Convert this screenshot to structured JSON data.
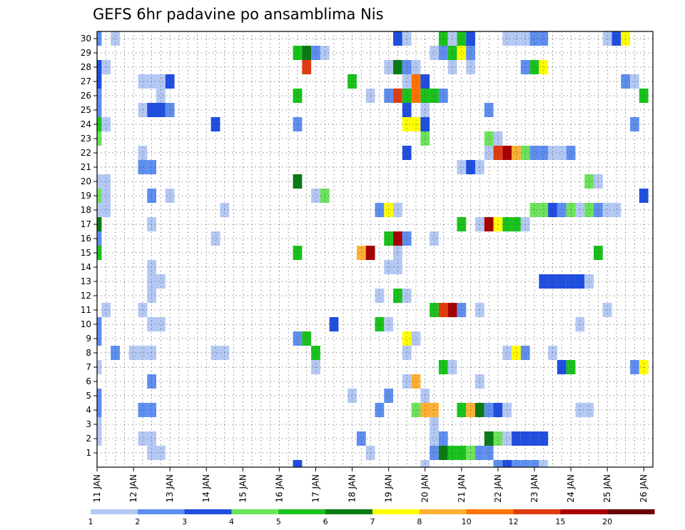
{
  "chart_data": {
    "type": "heatmap",
    "title": "GEFS 6hr padavine po ansamblima Nis",
    "xlabel": "",
    "ylabel": "",
    "x_tick_labels": [
      "11 JAN",
      "12 JAN",
      "13 JAN",
      "14 JAN",
      "15 JAN",
      "16 JAN",
      "17 JAN",
      "18 JAN",
      "19 JAN",
      "20 JAN",
      "21 JAN",
      "22 JAN",
      "23 JAN",
      "24 JAN",
      "25 JAN",
      "26 JAN"
    ],
    "y_tick_labels": [
      "1",
      "2",
      "3",
      "4",
      "5",
      "6",
      "7",
      "8",
      "9",
      "10",
      "11",
      "12",
      "13",
      "14",
      "15",
      "16",
      "17",
      "18",
      "19",
      "20",
      "21",
      "22",
      "23",
      "24",
      "25",
      "26",
      "27",
      "28",
      "29",
      "30"
    ],
    "ylim": [
      0,
      30
    ],
    "time_steps": 61,
    "grid": true,
    "levels": [
      {
        "label": "1",
        "color": "#b4c8f4"
      },
      {
        "label": "2",
        "color": "#5e8eef"
      },
      {
        "label": "3",
        "color": "#1f4ee0"
      },
      {
        "label": "4",
        "color": "#6ce35a"
      },
      {
        "label": "5",
        "color": "#19c21c"
      },
      {
        "label": "6",
        "color": "#0a7a14"
      },
      {
        "label": "7",
        "color": "#ffff00"
      },
      {
        "label": "8",
        "color": "#ffb033"
      },
      {
        "label": "10",
        "color": "#ff7400"
      },
      {
        "label": "12",
        "color": "#e03c10"
      },
      {
        "label": "15",
        "color": "#a80000"
      },
      {
        "label": "20",
        "color": "#6a0000"
      }
    ],
    "colorbar_labels": [
      "1",
      "2",
      "3",
      "4",
      "5",
      "6",
      "7",
      "8",
      "10",
      "12",
      "15",
      "20"
    ],
    "cells_format": "[member, time_step, level_index]",
    "cells": [
      [
        30,
        0,
        1
      ],
      [
        30,
        2,
        0
      ],
      [
        30,
        33,
        2
      ],
      [
        30,
        34,
        0
      ],
      [
        30,
        38,
        4
      ],
      [
        30,
        39,
        0
      ],
      [
        30,
        40,
        4
      ],
      [
        30,
        41,
        2
      ],
      [
        30,
        45,
        0
      ],
      [
        30,
        46,
        0
      ],
      [
        30,
        47,
        0
      ],
      [
        30,
        48,
        1
      ],
      [
        30,
        49,
        1
      ],
      [
        30,
        56,
        0
      ],
      [
        30,
        57,
        2
      ],
      [
        30,
        58,
        6
      ],
      [
        29,
        22,
        4
      ],
      [
        29,
        23,
        5
      ],
      [
        29,
        24,
        1
      ],
      [
        29,
        25,
        0
      ],
      [
        29,
        37,
        0
      ],
      [
        29,
        38,
        1
      ],
      [
        29,
        39,
        4
      ],
      [
        29,
        40,
        6
      ],
      [
        29,
        41,
        1
      ],
      [
        28,
        0,
        2
      ],
      [
        28,
        1,
        0
      ],
      [
        28,
        23,
        9
      ],
      [
        28,
        32,
        0
      ],
      [
        28,
        33,
        5
      ],
      [
        28,
        34,
        1
      ],
      [
        28,
        35,
        0
      ],
      [
        28,
        39,
        0
      ],
      [
        28,
        41,
        0
      ],
      [
        28,
        47,
        1
      ],
      [
        28,
        48,
        4
      ],
      [
        28,
        49,
        6
      ],
      [
        27,
        0,
        2
      ],
      [
        27,
        5,
        0
      ],
      [
        27,
        6,
        0
      ],
      [
        27,
        7,
        0
      ],
      [
        27,
        8,
        2
      ],
      [
        27,
        28,
        4
      ],
      [
        27,
        34,
        0
      ],
      [
        27,
        35,
        8
      ],
      [
        27,
        36,
        2
      ],
      [
        27,
        58,
        1
      ],
      [
        27,
        59,
        0
      ],
      [
        26,
        0,
        1
      ],
      [
        26,
        7,
        0
      ],
      [
        26,
        22,
        4
      ],
      [
        26,
        30,
        0
      ],
      [
        26,
        32,
        1
      ],
      [
        26,
        33,
        9
      ],
      [
        26,
        34,
        4
      ],
      [
        26,
        35,
        8
      ],
      [
        26,
        36,
        4
      ],
      [
        26,
        37,
        4
      ],
      [
        26,
        38,
        1
      ],
      [
        26,
        60,
        4
      ],
      [
        25,
        0,
        1
      ],
      [
        25,
        5,
        0
      ],
      [
        25,
        6,
        2
      ],
      [
        25,
        7,
        2
      ],
      [
        25,
        8,
        1
      ],
      [
        25,
        34,
        2
      ],
      [
        25,
        36,
        0
      ],
      [
        25,
        43,
        1
      ],
      [
        24,
        0,
        4
      ],
      [
        24,
        1,
        0
      ],
      [
        24,
        13,
        2
      ],
      [
        24,
        22,
        1
      ],
      [
        24,
        34,
        6
      ],
      [
        24,
        35,
        6
      ],
      [
        24,
        36,
        2
      ],
      [
        24,
        59,
        1
      ],
      [
        23,
        0,
        3
      ],
      [
        23,
        36,
        3
      ],
      [
        23,
        43,
        3
      ],
      [
        23,
        44,
        0
      ],
      [
        22,
        5,
        0
      ],
      [
        22,
        34,
        2
      ],
      [
        22,
        43,
        0
      ],
      [
        22,
        44,
        9
      ],
      [
        22,
        45,
        10
      ],
      [
        22,
        46,
        7
      ],
      [
        22,
        47,
        3
      ],
      [
        22,
        48,
        1
      ],
      [
        22,
        49,
        1
      ],
      [
        22,
        50,
        0
      ],
      [
        22,
        51,
        0
      ],
      [
        22,
        52,
        1
      ],
      [
        21,
        5,
        1
      ],
      [
        21,
        6,
        1
      ],
      [
        21,
        40,
        0
      ],
      [
        21,
        41,
        2
      ],
      [
        21,
        42,
        0
      ],
      [
        20,
        0,
        0
      ],
      [
        20,
        1,
        0
      ],
      [
        20,
        22,
        5
      ],
      [
        20,
        54,
        3
      ],
      [
        20,
        55,
        0
      ],
      [
        19,
        0,
        3
      ],
      [
        19,
        1,
        0
      ],
      [
        19,
        6,
        1
      ],
      [
        19,
        8,
        0
      ],
      [
        19,
        24,
        0
      ],
      [
        19,
        25,
        3
      ],
      [
        19,
        60,
        2
      ],
      [
        18,
        0,
        0
      ],
      [
        18,
        1,
        0
      ],
      [
        18,
        14,
        0
      ],
      [
        18,
        31,
        1
      ],
      [
        18,
        32,
        6
      ],
      [
        18,
        33,
        0
      ],
      [
        18,
        48,
        3
      ],
      [
        18,
        49,
        3
      ],
      [
        18,
        50,
        2
      ],
      [
        18,
        51,
        1
      ],
      [
        18,
        52,
        3
      ],
      [
        18,
        53,
        0
      ],
      [
        18,
        54,
        3
      ],
      [
        18,
        55,
        1
      ],
      [
        18,
        56,
        0
      ],
      [
        18,
        57,
        0
      ],
      [
        17,
        0,
        5
      ],
      [
        17,
        6,
        0
      ],
      [
        17,
        40,
        4
      ],
      [
        17,
        42,
        0
      ],
      [
        17,
        43,
        10
      ],
      [
        17,
        44,
        6
      ],
      [
        17,
        45,
        4
      ],
      [
        17,
        46,
        4
      ],
      [
        17,
        47,
        0
      ],
      [
        16,
        0,
        1
      ],
      [
        16,
        13,
        0
      ],
      [
        16,
        32,
        4
      ],
      [
        16,
        33,
        10
      ],
      [
        16,
        34,
        1
      ],
      [
        16,
        37,
        0
      ],
      [
        15,
        0,
        4
      ],
      [
        15,
        22,
        4
      ],
      [
        15,
        29,
        7
      ],
      [
        15,
        30,
        10
      ],
      [
        15,
        33,
        0
      ],
      [
        15,
        55,
        4
      ],
      [
        14,
        6,
        0
      ],
      [
        14,
        32,
        0
      ],
      [
        14,
        33,
        0
      ],
      [
        13,
        6,
        0
      ],
      [
        13,
        7,
        0
      ],
      [
        13,
        49,
        2
      ],
      [
        13,
        50,
        2
      ],
      [
        13,
        51,
        2
      ],
      [
        13,
        52,
        2
      ],
      [
        13,
        53,
        2
      ],
      [
        13,
        54,
        0
      ],
      [
        12,
        6,
        0
      ],
      [
        12,
        31,
        0
      ],
      [
        12,
        33,
        4
      ],
      [
        12,
        34,
        0
      ],
      [
        11,
        1,
        0
      ],
      [
        11,
        5,
        0
      ],
      [
        11,
        37,
        4
      ],
      [
        11,
        38,
        9
      ],
      [
        11,
        39,
        10
      ],
      [
        11,
        40,
        1
      ],
      [
        11,
        42,
        0
      ],
      [
        11,
        56,
        0
      ],
      [
        10,
        0,
        1
      ],
      [
        10,
        6,
        0
      ],
      [
        10,
        7,
        0
      ],
      [
        10,
        26,
        2
      ],
      [
        10,
        31,
        4
      ],
      [
        10,
        32,
        0
      ],
      [
        10,
        53,
        0
      ],
      [
        9,
        0,
        1
      ],
      [
        9,
        22,
        1
      ],
      [
        9,
        23,
        4
      ],
      [
        9,
        34,
        6
      ],
      [
        9,
        35,
        0
      ],
      [
        8,
        2,
        1
      ],
      [
        8,
        4,
        0
      ],
      [
        8,
        5,
        0
      ],
      [
        8,
        6,
        0
      ],
      [
        8,
        13,
        0
      ],
      [
        8,
        14,
        0
      ],
      [
        8,
        24,
        4
      ],
      [
        8,
        34,
        0
      ],
      [
        8,
        45,
        0
      ],
      [
        8,
        46,
        6
      ],
      [
        8,
        47,
        1
      ],
      [
        8,
        50,
        0
      ],
      [
        7,
        0,
        0
      ],
      [
        7,
        24,
        0
      ],
      [
        7,
        38,
        4
      ],
      [
        7,
        39,
        0
      ],
      [
        7,
        51,
        2
      ],
      [
        7,
        52,
        4
      ],
      [
        7,
        59,
        1
      ],
      [
        7,
        60,
        6
      ],
      [
        6,
        6,
        1
      ],
      [
        6,
        34,
        0
      ],
      [
        6,
        35,
        7
      ],
      [
        6,
        42,
        0
      ],
      [
        5,
        0,
        1
      ],
      [
        5,
        28,
        0
      ],
      [
        5,
        32,
        1
      ],
      [
        5,
        36,
        0
      ],
      [
        4,
        0,
        1
      ],
      [
        4,
        5,
        1
      ],
      [
        4,
        6,
        1
      ],
      [
        4,
        31,
        1
      ],
      [
        4,
        35,
        3
      ],
      [
        4,
        36,
        7
      ],
      [
        4,
        37,
        7
      ],
      [
        4,
        40,
        4
      ],
      [
        4,
        41,
        7
      ],
      [
        4,
        42,
        5
      ],
      [
        4,
        43,
        1
      ],
      [
        4,
        44,
        2
      ],
      [
        4,
        45,
        0
      ],
      [
        4,
        53,
        0
      ],
      [
        4,
        54,
        0
      ],
      [
        3,
        0,
        0
      ],
      [
        3,
        37,
        0
      ],
      [
        2,
        0,
        0
      ],
      [
        2,
        5,
        0
      ],
      [
        2,
        6,
        0
      ],
      [
        2,
        29,
        1
      ],
      [
        2,
        37,
        0
      ],
      [
        2,
        38,
        1
      ],
      [
        2,
        43,
        5
      ],
      [
        2,
        44,
        3
      ],
      [
        2,
        45,
        0
      ],
      [
        2,
        46,
        2
      ],
      [
        2,
        47,
        2
      ],
      [
        2,
        48,
        2
      ],
      [
        2,
        49,
        2
      ],
      [
        1,
        6,
        0
      ],
      [
        1,
        7,
        0
      ],
      [
        1,
        30,
        0
      ],
      [
        1,
        37,
        1
      ],
      [
        1,
        38,
        5
      ],
      [
        1,
        39,
        4
      ],
      [
        1,
        40,
        4
      ],
      [
        1,
        41,
        3
      ],
      [
        1,
        42,
        1
      ],
      [
        1,
        43,
        1
      ],
      [
        0,
        22,
        2
      ],
      [
        0,
        36,
        0
      ],
      [
        0,
        44,
        1
      ],
      [
        0,
        45,
        2
      ],
      [
        0,
        46,
        1
      ],
      [
        0,
        47,
        1
      ],
      [
        0,
        48,
        1
      ],
      [
        0,
        49,
        0
      ]
    ]
  }
}
